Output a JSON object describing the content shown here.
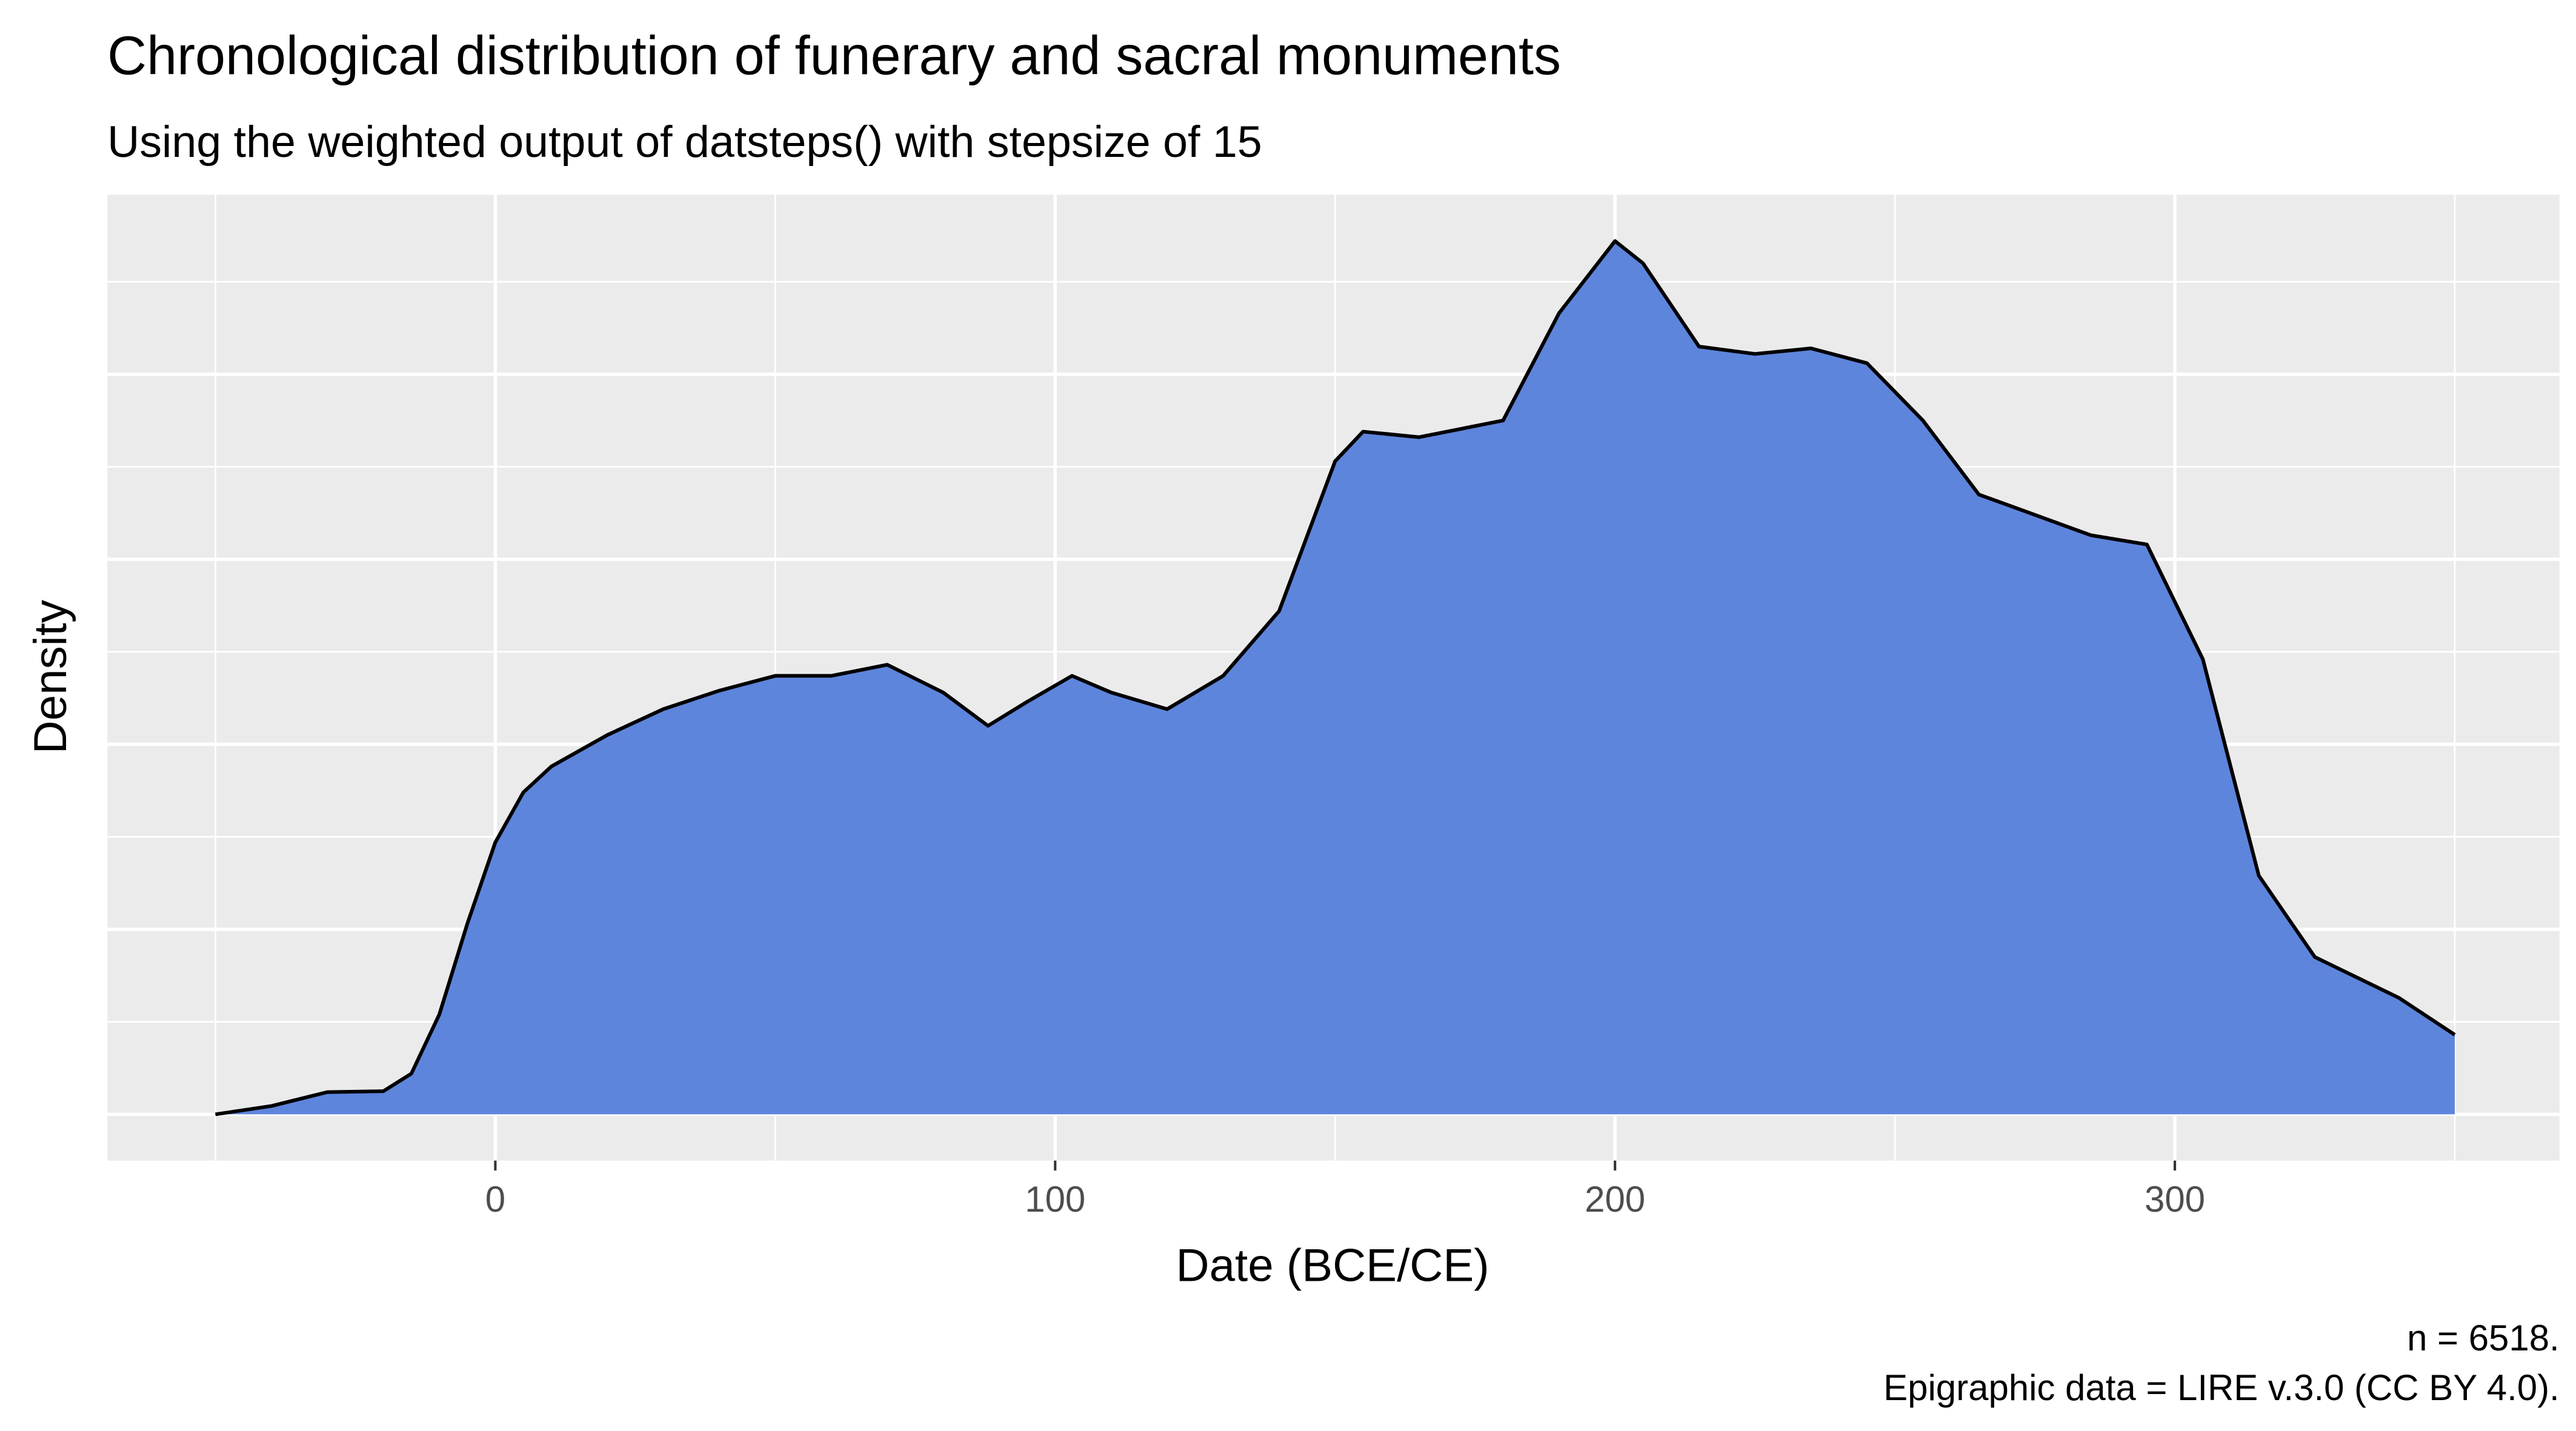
{
  "chart_data": {
    "type": "area",
    "title": "Chronological distribution of funerary and sacral monuments",
    "subtitle": "Using the weighted output of datsteps() with stepsize of 15",
    "x_label": "Date (BCE/CE)",
    "y_label": "Density",
    "caption": [
      "n = 6518.",
      "Epigraphic data = LIRE v.3.0 (CC BY 4.0)."
    ],
    "x": [
      -50,
      -40,
      -30,
      -20,
      -15,
      -10,
      -5,
      0,
      5,
      10,
      20,
      30,
      40,
      50,
      60,
      70,
      80,
      88,
      95,
      103,
      110,
      120,
      130,
      140,
      150,
      155,
      165,
      180,
      190,
      200,
      205,
      215,
      225,
      235,
      245,
      255,
      265,
      275,
      285,
      295,
      305,
      315,
      325,
      340,
      350
    ],
    "series": [
      {
        "name": "density",
        "color": "#5b83db",
        "values": [
          0,
          4.5e-05,
          0.00012,
          0.000125,
          0.00022,
          0.00054,
          0.00103,
          0.00147,
          0.00174,
          0.00188,
          0.00205,
          0.00219,
          0.00229,
          0.00237,
          0.00237,
          0.00243,
          0.00228,
          0.0021,
          0.00223,
          0.00237,
          0.00228,
          0.00219,
          0.00237,
          0.00272,
          0.00353,
          0.00369,
          0.00366,
          0.00375,
          0.00433,
          0.00472,
          0.0046,
          0.00415,
          0.00411,
          0.00414,
          0.00406,
          0.00375,
          0.00335,
          0.00324,
          0.00313,
          0.00308,
          0.00246,
          0.00129,
          0.00085,
          0.00063,
          0.00043
        ]
      }
    ],
    "xlim": [
      -69.3,
      368.7
    ],
    "xticks": [
      0,
      100,
      200,
      300
    ],
    "ylim": [
      -0.00025,
      0.00497
    ],
    "yticks": [
      0,
      0.001,
      0.002,
      0.003,
      0.004
    ],
    "grid": true
  }
}
